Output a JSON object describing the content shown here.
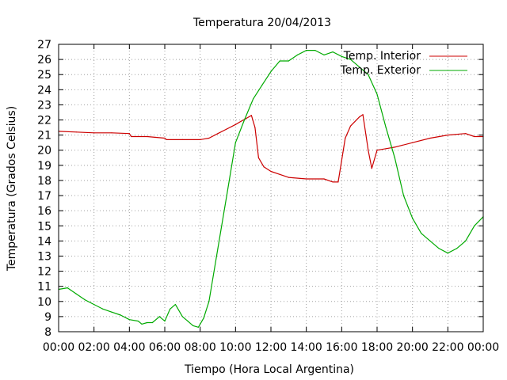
{
  "chart_data": {
    "type": "line",
    "title": "Temperatura 20/04/2013",
    "xlabel": "Tiempo (Hora Local Argentina)",
    "ylabel": "Temperatura (Grados Celsius)",
    "xlim": [
      0,
      24
    ],
    "ylim": [
      8,
      27
    ],
    "x_tick_labels": [
      "00:00",
      "02:00",
      "04:00",
      "06:00",
      "08:00",
      "10:00",
      "12:00",
      "14:00",
      "16:00",
      "18:00",
      "20:00",
      "22:00",
      "00:00"
    ],
    "y_ticks": [
      8,
      9,
      10,
      11,
      12,
      13,
      14,
      15,
      16,
      17,
      18,
      19,
      20,
      21,
      22,
      23,
      24,
      25,
      26,
      27
    ],
    "grid": true,
    "legend_position": "top-right",
    "series": [
      {
        "name": "Temp. Interior",
        "color": "#cc0000",
        "x": [
          0,
          1,
          2,
          3,
          4,
          4.1,
          5,
          5.5,
          6,
          6.1,
          7,
          8,
          8.5,
          9,
          9.5,
          10,
          10.3,
          10.6,
          10.9,
          11.1,
          11.3,
          11.6,
          12,
          12.5,
          13,
          14,
          15,
          15.5,
          15.8,
          16.2,
          16.5,
          17,
          17.2,
          17.5,
          17.7,
          18,
          18.5,
          19,
          20,
          21,
          22,
          23,
          23.5,
          24
        ],
        "y": [
          21.25,
          21.2,
          21.15,
          21.15,
          21.1,
          20.9,
          20.9,
          20.85,
          20.8,
          20.7,
          20.7,
          20.7,
          20.8,
          21.1,
          21.4,
          21.7,
          21.9,
          22.1,
          22.3,
          21.5,
          19.5,
          18.9,
          18.6,
          18.4,
          18.2,
          18.1,
          18.1,
          17.9,
          17.9,
          20.8,
          21.6,
          22.2,
          22.35,
          20.0,
          18.8,
          20.0,
          20.1,
          20.2,
          20.5,
          20.8,
          21.0,
          21.1,
          20.9,
          20.9
        ]
      },
      {
        "name": "Temp. Exterior",
        "color": "#00aa00",
        "x": [
          0,
          0.5,
          1,
          1.5,
          2,
          2.5,
          3,
          3.5,
          4,
          4.5,
          4.7,
          5,
          5.3,
          5.7,
          6,
          6.3,
          6.6,
          7,
          7.3,
          7.6,
          7.9,
          8.2,
          8.5,
          9,
          9.5,
          10,
          10.5,
          11,
          11.5,
          12,
          12.5,
          13,
          13.5,
          14,
          14.5,
          15,
          15.5,
          16,
          16.5,
          17,
          17.5,
          18,
          18.5,
          19,
          19.5,
          20,
          20.5,
          21,
          21.5,
          22,
          22.5,
          23,
          23.5,
          24
        ],
        "y": [
          10.8,
          10.9,
          10.5,
          10.1,
          9.8,
          9.5,
          9.3,
          9.1,
          8.8,
          8.7,
          8.5,
          8.6,
          8.6,
          9.0,
          8.7,
          9.5,
          9.8,
          9.0,
          8.7,
          8.4,
          8.3,
          8.9,
          10.0,
          13.5,
          17.0,
          20.5,
          22.0,
          23.4,
          24.3,
          25.2,
          25.9,
          25.9,
          26.3,
          26.6,
          26.6,
          26.3,
          26.5,
          26.2,
          26.0,
          25.5,
          25.0,
          23.7,
          21.5,
          19.5,
          17.0,
          15.5,
          14.5,
          14.0,
          13.5,
          13.2,
          13.5,
          14.0,
          15.0,
          15.6
        ]
      }
    ]
  }
}
